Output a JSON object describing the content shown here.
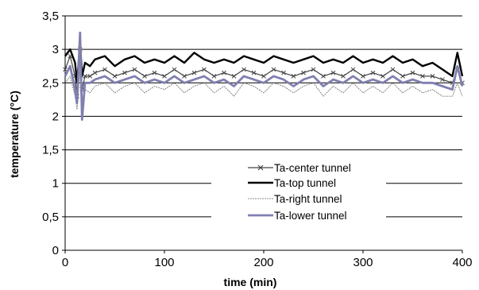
{
  "chart_data": {
    "type": "line",
    "title": "",
    "xlabel": "time (min)",
    "ylabel": "temperature (°C)",
    "xlim": [
      0,
      400
    ],
    "ylim": [
      0,
      3.5
    ],
    "x_ticks": [
      {
        "value": 0,
        "label": "0"
      },
      {
        "value": 100,
        "label": "100"
      },
      {
        "value": 200,
        "label": "200"
      },
      {
        "value": 300,
        "label": "300"
      },
      {
        "value": 400,
        "label": "400"
      }
    ],
    "y_ticks": [
      {
        "value": 0,
        "label": "0"
      },
      {
        "value": 0.5,
        "label": "0,5"
      },
      {
        "value": 1,
        "label": "1"
      },
      {
        "value": 1.5,
        "label": "1,5"
      },
      {
        "value": 2,
        "label": "2"
      },
      {
        "value": 2.5,
        "label": "2,5"
      },
      {
        "value": 3,
        "label": "3"
      },
      {
        "value": 3.5,
        "label": "3,5"
      }
    ],
    "grid": "horizontal",
    "legend_position": "center",
    "series": [
      {
        "name": "Ta-center tunnel",
        "color": "#444444",
        "marker": "x",
        "x": [
          0,
          5,
          10,
          12,
          15,
          17,
          20,
          25,
          30,
          40,
          50,
          60,
          70,
          80,
          90,
          100,
          110,
          120,
          130,
          140,
          150,
          160,
          170,
          180,
          190,
          200,
          210,
          220,
          230,
          240,
          250,
          260,
          270,
          280,
          290,
          300,
          310,
          320,
          330,
          340,
          350,
          360,
          370,
          380,
          390,
          395,
          400
        ],
        "y": [
          2.7,
          2.9,
          2.6,
          2.3,
          3.0,
          2.4,
          2.6,
          2.6,
          2.65,
          2.7,
          2.6,
          2.65,
          2.7,
          2.6,
          2.65,
          2.6,
          2.7,
          2.6,
          2.65,
          2.7,
          2.6,
          2.65,
          2.6,
          2.7,
          2.65,
          2.6,
          2.7,
          2.65,
          2.6,
          2.65,
          2.7,
          2.6,
          2.65,
          2.6,
          2.7,
          2.6,
          2.65,
          2.6,
          2.7,
          2.6,
          2.65,
          2.6,
          2.6,
          2.55,
          2.5,
          2.7,
          2.5
        ]
      },
      {
        "name": "Ta-top tunnel",
        "color": "#000000",
        "marker": "none",
        "x": [
          0,
          5,
          10,
          12,
          15,
          17,
          20,
          25,
          30,
          40,
          50,
          60,
          70,
          80,
          90,
          100,
          110,
          120,
          130,
          140,
          150,
          160,
          170,
          180,
          190,
          200,
          210,
          220,
          230,
          240,
          250,
          260,
          270,
          280,
          290,
          300,
          310,
          320,
          330,
          340,
          350,
          360,
          370,
          380,
          390,
          395,
          400
        ],
        "y": [
          2.9,
          3.0,
          2.8,
          2.5,
          3.1,
          2.6,
          2.8,
          2.75,
          2.85,
          2.9,
          2.75,
          2.85,
          2.9,
          2.8,
          2.85,
          2.8,
          2.9,
          2.8,
          2.95,
          2.85,
          2.8,
          2.85,
          2.8,
          2.9,
          2.85,
          2.8,
          2.9,
          2.85,
          2.8,
          2.85,
          2.9,
          2.8,
          2.85,
          2.8,
          2.9,
          2.8,
          2.85,
          2.8,
          2.9,
          2.8,
          2.85,
          2.75,
          2.8,
          2.7,
          2.6,
          2.95,
          2.6
        ]
      },
      {
        "name": "Ta-right tunnel",
        "color": "#666666",
        "marker": "none",
        "x": [
          0,
          5,
          10,
          12,
          15,
          17,
          20,
          25,
          30,
          40,
          50,
          60,
          70,
          80,
          90,
          100,
          110,
          120,
          130,
          140,
          150,
          160,
          170,
          180,
          190,
          200,
          210,
          220,
          230,
          240,
          250,
          260,
          270,
          280,
          290,
          300,
          310,
          320,
          330,
          340,
          350,
          360,
          370,
          380,
          390,
          395,
          400
        ],
        "y": [
          2.5,
          2.6,
          2.3,
          2.1,
          2.7,
          2.0,
          2.4,
          2.35,
          2.45,
          2.5,
          2.35,
          2.45,
          2.5,
          2.35,
          2.45,
          2.4,
          2.5,
          2.35,
          2.45,
          2.5,
          2.35,
          2.45,
          2.3,
          2.5,
          2.45,
          2.35,
          2.5,
          2.45,
          2.35,
          2.45,
          2.5,
          2.3,
          2.45,
          2.35,
          2.5,
          2.35,
          2.45,
          2.35,
          2.5,
          2.35,
          2.45,
          2.35,
          2.4,
          2.3,
          2.3,
          2.5,
          2.3
        ]
      },
      {
        "name": "Ta-lower tunnel",
        "color": "#7f7fb0",
        "marker": "none",
        "x": [
          0,
          5,
          10,
          12,
          15,
          17,
          20,
          25,
          30,
          40,
          50,
          60,
          70,
          80,
          90,
          100,
          110,
          120,
          130,
          140,
          150,
          160,
          170,
          180,
          190,
          200,
          210,
          220,
          230,
          240,
          250,
          260,
          270,
          280,
          290,
          300,
          310,
          320,
          330,
          340,
          350,
          360,
          370,
          380,
          390,
          395,
          400
        ],
        "y": [
          2.6,
          2.75,
          2.4,
          2.2,
          3.25,
          1.95,
          2.5,
          2.5,
          2.55,
          2.6,
          2.5,
          2.55,
          2.6,
          2.5,
          2.55,
          2.5,
          2.6,
          2.5,
          2.55,
          2.6,
          2.5,
          2.55,
          2.45,
          2.6,
          2.55,
          2.5,
          2.6,
          2.55,
          2.45,
          2.55,
          2.6,
          2.45,
          2.55,
          2.5,
          2.6,
          2.5,
          2.55,
          2.5,
          2.6,
          2.5,
          2.55,
          2.5,
          2.5,
          2.45,
          2.4,
          2.75,
          2.45
        ]
      }
    ]
  }
}
